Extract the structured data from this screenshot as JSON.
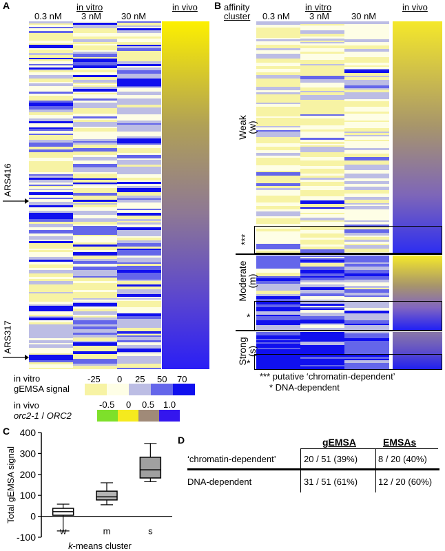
{
  "panels": {
    "A": "A",
    "B": "B",
    "C": "C",
    "D": "D"
  },
  "panelA": {
    "group_in_vitro": "in vitro",
    "group_in_vivo": "in vivo",
    "conc": [
      "0.3 nM",
      "3 nM",
      "30 nM"
    ],
    "markers": [
      "ARS416",
      "ARS317"
    ]
  },
  "panelB": {
    "cluster_header_1": "affinity",
    "cluster_header_2": "cluster",
    "group_in_vitro": "in vitro",
    "group_in_vivo": "in vivo",
    "conc": [
      "0.3 nM",
      "3 nM",
      "30 nM"
    ],
    "clusters": {
      "weak": "Weak",
      "weak_abbr": "(w)",
      "moderate": "Moderate",
      "moderate_abbr": "(m)",
      "strong": "Strong",
      "strong_abbr": "(s)"
    },
    "marks": {
      "triple": "***",
      "single": "*"
    },
    "notes": {
      "triple": "*** putative ‘chromatin-dependent’",
      "single": "* DNA-dependent"
    }
  },
  "legend": {
    "vitro_line1": "in vitro",
    "vitro_line2": "gEMSA signal",
    "vitro_ticks": [
      "-25",
      "0",
      "25",
      "50",
      "70"
    ],
    "vitro_colors": [
      "#f7f3a4",
      "#fefee6",
      "#bcbde4",
      "#6466ea",
      "#1010ee"
    ],
    "vivo_line1": "in vivo",
    "vivo_line2_a": "orc2-1",
    "vivo_line2_b": " / ",
    "vivo_line2_c": "ORC2",
    "vivo_ticks": [
      "-0.5",
      "0",
      "0.5",
      "1.0"
    ],
    "vivo_colors": [
      "#7ee02a",
      "#f5ea1e",
      "#a08a78",
      "#3416ee"
    ]
  },
  "chart_data": {
    "type": "box",
    "title": "",
    "xlabel_italic": "k",
    "xlabel_rest": "-means cluster",
    "ylabel": "Total gEMSA signal",
    "ylim": [
      -100,
      400
    ],
    "yticks": [
      "-100",
      "0",
      "100",
      "200",
      "300",
      "400"
    ],
    "categories": [
      "w",
      "m",
      "s"
    ],
    "boxes": [
      {
        "name": "w",
        "min": -70,
        "q1": 5,
        "median": 22,
        "q3": 38,
        "max": 58,
        "fill": "#ffffff"
      },
      {
        "name": "m",
        "min": 55,
        "q1": 78,
        "median": 93,
        "q3": 120,
        "max": 160,
        "fill": "#b4b4b4"
      },
      {
        "name": "s",
        "min": 165,
        "q1": 183,
        "median": 222,
        "q3": 282,
        "max": 348,
        "fill": "#a0a0a0"
      }
    ]
  },
  "tableD": {
    "headers": [
      "gEMSA",
      "EMSAs"
    ],
    "rows": [
      {
        "label": "‘chromatin-dependent’",
        "gemsa": "20 / 51 (39%)",
        "emsas": "8 / 20 (40%)"
      },
      {
        "label": "DNA-dependent",
        "gemsa": "31 / 51 (61%)",
        "emsas": "12 / 20 (60%)"
      }
    ]
  }
}
